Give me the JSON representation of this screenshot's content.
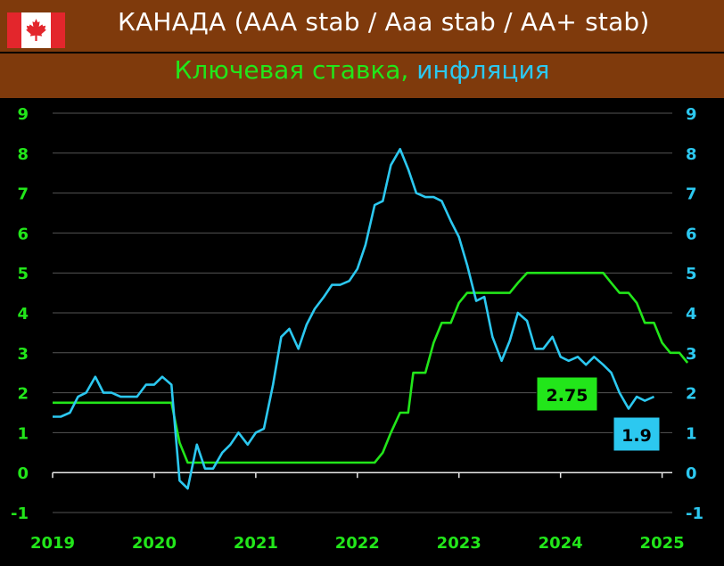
{
  "header": {
    "title": "КАНАДА (AAA stab / Aaa stab / AA+ stab)",
    "subtitle_rate": "Ключевая ставка,",
    "subtitle_inflation": "инфляция",
    "flag_icon": "canada-flag-icon"
  },
  "colors": {
    "background": "#000000",
    "header": "#7f3a0c",
    "rate": "#22e61a",
    "inflation": "#2cc8f0",
    "grid": "#555555",
    "left_axis_labels": "#22e61a",
    "right_axis_labels": "#2cc8f0"
  },
  "chart_data": {
    "type": "line",
    "title": "Ключевая ставка, инфляция",
    "x_ticks": [
      "2019",
      "2020",
      "2021",
      "2022",
      "2023",
      "2024",
      "2025"
    ],
    "xlim": [
      2019.0,
      2025.1
    ],
    "ylim": [
      -1,
      9
    ],
    "y_ticks": [
      "-1",
      "0",
      "1",
      "2",
      "3",
      "4",
      "5",
      "6",
      "7",
      "8",
      "9"
    ],
    "grid": "horizontal",
    "series": [
      {
        "name": "Ключевая ставка",
        "color": "#22e61a",
        "points": [
          [
            2019.0,
            1.75
          ],
          [
            2020.17,
            1.75
          ],
          [
            2020.25,
            0.75
          ],
          [
            2020.33,
            0.25
          ],
          [
            2022.17,
            0.25
          ],
          [
            2022.25,
            0.5
          ],
          [
            2022.33,
            1.0
          ],
          [
            2022.42,
            1.5
          ],
          [
            2022.5,
            1.5
          ],
          [
            2022.55,
            2.5
          ],
          [
            2022.67,
            2.5
          ],
          [
            2022.75,
            3.25
          ],
          [
            2022.83,
            3.75
          ],
          [
            2022.92,
            3.75
          ],
          [
            2023.0,
            4.25
          ],
          [
            2023.08,
            4.5
          ],
          [
            2023.5,
            4.5
          ],
          [
            2023.58,
            4.75
          ],
          [
            2023.67,
            5.0
          ],
          [
            2024.42,
            5.0
          ],
          [
            2024.5,
            4.75
          ],
          [
            2024.58,
            4.5
          ],
          [
            2024.67,
            4.5
          ],
          [
            2024.75,
            4.25
          ],
          [
            2024.83,
            3.75
          ],
          [
            2024.92,
            3.75
          ],
          [
            2025.0,
            3.25
          ],
          [
            2025.08,
            3.0
          ],
          [
            2025.17,
            3.0
          ],
          [
            2025.25,
            2.75
          ]
        ],
        "last_label": "2.75"
      },
      {
        "name": "Инфляция",
        "color": "#2cc8f0",
        "points": [
          [
            2019.0,
            1.4
          ],
          [
            2019.08,
            1.4
          ],
          [
            2019.17,
            1.5
          ],
          [
            2019.25,
            1.9
          ],
          [
            2019.33,
            2.0
          ],
          [
            2019.42,
            2.4
          ],
          [
            2019.5,
            2.0
          ],
          [
            2019.58,
            2.0
          ],
          [
            2019.67,
            1.9
          ],
          [
            2019.75,
            1.9
          ],
          [
            2019.83,
            1.9
          ],
          [
            2019.92,
            2.2
          ],
          [
            2020.0,
            2.2
          ],
          [
            2020.08,
            2.4
          ],
          [
            2020.17,
            2.2
          ],
          [
            2020.25,
            -0.2
          ],
          [
            2020.33,
            -0.4
          ],
          [
            2020.42,
            0.7
          ],
          [
            2020.5,
            0.1
          ],
          [
            2020.58,
            0.1
          ],
          [
            2020.67,
            0.5
          ],
          [
            2020.75,
            0.7
          ],
          [
            2020.83,
            1.0
          ],
          [
            2020.92,
            0.7
          ],
          [
            2021.0,
            1.0
          ],
          [
            2021.08,
            1.1
          ],
          [
            2021.17,
            2.2
          ],
          [
            2021.25,
            3.4
          ],
          [
            2021.33,
            3.6
          ],
          [
            2021.42,
            3.1
          ],
          [
            2021.5,
            3.7
          ],
          [
            2021.58,
            4.1
          ],
          [
            2021.67,
            4.4
          ],
          [
            2021.75,
            4.7
          ],
          [
            2021.83,
            4.7
          ],
          [
            2021.92,
            4.8
          ],
          [
            2022.0,
            5.1
          ],
          [
            2022.08,
            5.7
          ],
          [
            2022.17,
            6.7
          ],
          [
            2022.25,
            6.8
          ],
          [
            2022.33,
            7.7
          ],
          [
            2022.42,
            8.1
          ],
          [
            2022.5,
            7.6
          ],
          [
            2022.58,
            7.0
          ],
          [
            2022.67,
            6.9
          ],
          [
            2022.75,
            6.9
          ],
          [
            2022.83,
            6.8
          ],
          [
            2022.92,
            6.3
          ],
          [
            2023.0,
            5.9
          ],
          [
            2023.08,
            5.2
          ],
          [
            2023.17,
            4.3
          ],
          [
            2023.25,
            4.4
          ],
          [
            2023.33,
            3.4
          ],
          [
            2023.42,
            2.8
          ],
          [
            2023.5,
            3.3
          ],
          [
            2023.58,
            4.0
          ],
          [
            2023.67,
            3.8
          ],
          [
            2023.75,
            3.1
          ],
          [
            2023.83,
            3.1
          ],
          [
            2023.92,
            3.4
          ],
          [
            2024.0,
            2.9
          ],
          [
            2024.08,
            2.8
          ],
          [
            2024.17,
            2.9
          ],
          [
            2024.25,
            2.7
          ],
          [
            2024.33,
            2.9
          ],
          [
            2024.42,
            2.7
          ],
          [
            2024.5,
            2.5
          ],
          [
            2024.58,
            2.0
          ],
          [
            2024.67,
            1.6
          ],
          [
            2024.75,
            1.9
          ],
          [
            2024.83,
            1.8
          ],
          [
            2024.92,
            1.9
          ]
        ],
        "last_label": "1.9"
      }
    ]
  }
}
